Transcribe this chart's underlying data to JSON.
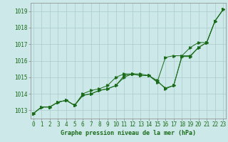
{
  "title": "Graphe pression niveau de la mer (hPa)",
  "x_values": [
    0,
    1,
    2,
    3,
    4,
    5,
    6,
    7,
    8,
    9,
    10,
    11,
    12,
    13,
    14,
    15,
    16,
    17,
    18,
    19,
    20,
    21,
    22,
    23
  ],
  "line1": [
    1012.8,
    1013.2,
    1013.2,
    1013.5,
    1013.6,
    1013.3,
    1013.9,
    1014.0,
    1014.2,
    1014.3,
    1014.5,
    1015.1,
    1015.2,
    1015.1,
    1015.1,
    1014.8,
    1014.3,
    1014.5,
    1016.3,
    1016.3,
    1016.8,
    1017.1,
    1018.4,
    1019.1
  ],
  "line2": [
    1012.8,
    1013.2,
    1013.2,
    1013.5,
    1013.6,
    1013.3,
    1013.9,
    1014.0,
    1014.2,
    1014.3,
    1014.5,
    1015.0,
    1015.2,
    1015.2,
    1015.1,
    1014.75,
    1014.35,
    1014.5,
    1016.25,
    1016.25,
    1016.8,
    1017.1,
    1018.4,
    1019.1
  ],
  "line3": [
    1012.8,
    1013.2,
    1013.2,
    1013.5,
    1013.6,
    1013.3,
    1014.0,
    1014.2,
    1014.3,
    1014.5,
    1015.0,
    1015.2,
    1015.2,
    1015.1,
    1015.1,
    1014.7,
    1016.2,
    1016.3,
    1016.3,
    1016.8,
    1017.1,
    1017.1,
    1018.4,
    1019.1
  ],
  "bg_color": "#cce8e8",
  "line_color": "#1a6b1a",
  "grid_color": "#aacccc",
  "ylim_min": 1012.5,
  "ylim_max": 1019.5,
  "yticks": [
    1013,
    1014,
    1015,
    1016,
    1017,
    1018,
    1019
  ],
  "text_color": "#1a6b1a",
  "title_color": "#1a6b1a",
  "tick_fontsize": 5.5,
  "title_fontsize": 6.0
}
